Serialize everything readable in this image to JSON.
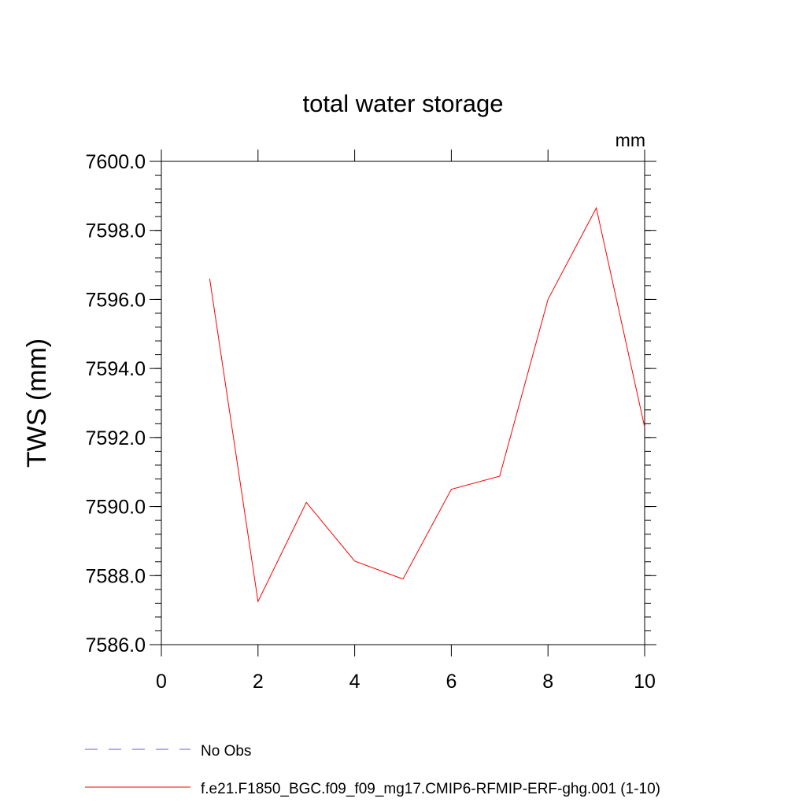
{
  "chart_data": {
    "type": "line",
    "title": "total water storage",
    "units_label": "mm",
    "xlabel": "",
    "ylabel": "TWS  (mm)",
    "xlim": [
      0,
      10
    ],
    "ylim": [
      7586.0,
      7600.0
    ],
    "x_ticks": [
      0,
      2,
      4,
      6,
      8,
      10
    ],
    "x_tick_labels": [
      "0",
      "2",
      "4",
      "6",
      "8",
      "10"
    ],
    "y_ticks": [
      7586.0,
      7588.0,
      7590.0,
      7592.0,
      7594.0,
      7596.0,
      7598.0,
      7600.0
    ],
    "y_tick_labels": [
      "7586.0",
      "7588.0",
      "7590.0",
      "7592.0",
      "7594.0",
      "7596.0",
      "7598.0",
      "7600.0"
    ],
    "series": [
      {
        "name": "f.e21.F1850_BGC.f09_f09_mg17.CMIP6-RFMIP-ERF-ghg.001 (1-10)",
        "color": "#ff0000",
        "style": "solid",
        "x": [
          1,
          2,
          3,
          4,
          5,
          6,
          7,
          8,
          9,
          10
        ],
        "values": [
          7596.6,
          7587.25,
          7590.12,
          7588.42,
          7587.9,
          7590.5,
          7590.88,
          7596.0,
          7598.65,
          7592.3
        ]
      }
    ],
    "legend": [
      {
        "label": "No Obs",
        "color": "#6a5acd",
        "style": "dashed"
      },
      {
        "label": "f.e21.F1850_BGC.f09_f09_mg17.CMIP6-RFMIP-ERF-ghg.001 (1-10)",
        "color": "#ff0000",
        "style": "solid"
      }
    ],
    "legend_position": "bottom"
  }
}
